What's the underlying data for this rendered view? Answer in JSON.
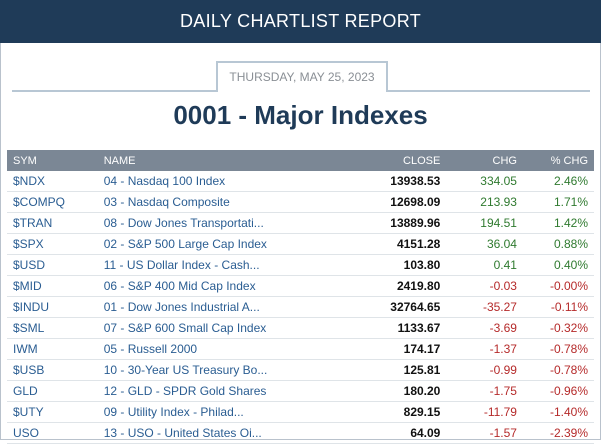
{
  "header": {
    "title": "DAILY CHARTLIST REPORT"
  },
  "report": {
    "date": "THURSDAY, MAY 25, 2023",
    "title": "0001 - Major Indexes"
  },
  "table": {
    "columns": [
      "SYM",
      "NAME",
      "CLOSE",
      "CHG",
      "% CHG"
    ],
    "rows": [
      {
        "sym": "$NDX",
        "name": "04 - Nasdaq 100 Index",
        "close": "13938.53",
        "chg": "334.05",
        "pct": "2.46%",
        "dir": "pos"
      },
      {
        "sym": "$COMPQ",
        "name": "03 - Nasdaq Composite",
        "close": "12698.09",
        "chg": "213.93",
        "pct": "1.71%",
        "dir": "pos"
      },
      {
        "sym": "$TRAN",
        "name": "08 - Dow Jones Transportati...",
        "close": "13889.96",
        "chg": "194.51",
        "pct": "1.42%",
        "dir": "pos"
      },
      {
        "sym": "$SPX",
        "name": "02 - S&P 500 Large Cap Index",
        "close": "4151.28",
        "chg": "36.04",
        "pct": "0.88%",
        "dir": "pos"
      },
      {
        "sym": "$USD",
        "name": "11 - US Dollar Index - Cash...",
        "close": "103.80",
        "chg": "0.41",
        "pct": "0.40%",
        "dir": "pos"
      },
      {
        "sym": "$MID",
        "name": "06 - S&P 400 Mid Cap Index",
        "close": "2419.80",
        "chg": "-0.03",
        "pct": "-0.00%",
        "dir": "neg"
      },
      {
        "sym": "$INDU",
        "name": "01 - Dow Jones Industrial A...",
        "close": "32764.65",
        "chg": "-35.27",
        "pct": "-0.11%",
        "dir": "neg"
      },
      {
        "sym": "$SML",
        "name": "07 - S&P 600 Small Cap Index",
        "close": "1133.67",
        "chg": "-3.69",
        "pct": "-0.32%",
        "dir": "neg"
      },
      {
        "sym": "IWM",
        "name": "05 - Russell 2000",
        "close": "174.17",
        "chg": "-1.37",
        "pct": "-0.78%",
        "dir": "neg"
      },
      {
        "sym": "$USB",
        "name": "10 - 30-Year US Treasury Bo...",
        "close": "125.81",
        "chg": "-0.99",
        "pct": "-0.78%",
        "dir": "neg"
      },
      {
        "sym": "GLD",
        "name": "12 - GLD - SPDR Gold Shares",
        "close": "180.20",
        "chg": "-1.75",
        "pct": "-0.96%",
        "dir": "neg"
      },
      {
        "sym": "$UTY",
        "name": "09 - Utility Index - Philad...",
        "close": "829.15",
        "chg": "-11.79",
        "pct": "-1.40%",
        "dir": "neg"
      },
      {
        "sym": "USO",
        "name": "13 - USO - United States Oi...",
        "close": "64.09",
        "chg": "-1.57",
        "pct": "-2.39%",
        "dir": "neg"
      }
    ]
  }
}
